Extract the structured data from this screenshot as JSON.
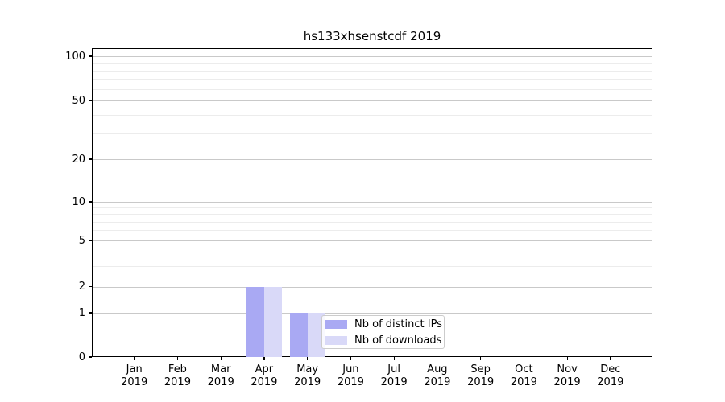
{
  "chart_data": {
    "type": "bar",
    "title": "hs133xhsenstcdf 2019",
    "categories": [
      "Jan 2019",
      "Feb 2019",
      "Mar 2019",
      "Apr 2019",
      "May 2019",
      "Jun 2019",
      "Jul 2019",
      "Aug 2019",
      "Sep 2019",
      "Oct 2019",
      "Nov 2019",
      "Dec 2019"
    ],
    "month_line1": [
      "Jan",
      "Feb",
      "Mar",
      "Apr",
      "May",
      "Jun",
      "Jul",
      "Aug",
      "Sep",
      "Oct",
      "Nov",
      "Dec"
    ],
    "year_line2": "2019",
    "series": [
      {
        "name": "Nb of distinct IPs",
        "color": "#a9a9f3",
        "values": [
          0,
          0,
          0,
          2,
          1,
          0,
          0,
          0,
          0,
          0,
          0,
          0
        ]
      },
      {
        "name": "Nb of downloads",
        "color": "#d9d9f8",
        "values": [
          0,
          0,
          0,
          2,
          1,
          0,
          0,
          0,
          0,
          0,
          0,
          0
        ]
      }
    ],
    "xlabel": "",
    "ylabel": "",
    "yscale": "symlog",
    "yticks": [
      0,
      1,
      2,
      5,
      10,
      20,
      50,
      100
    ],
    "yminor_ticks": [
      3,
      4,
      6,
      7,
      8,
      9,
      30,
      40,
      60,
      70,
      80,
      90
    ],
    "ylim": [
      0,
      115
    ],
    "grid": "horizontal major and minor",
    "legend": {
      "position": "lower center",
      "entries": [
        "Nb of distinct IPs",
        "Nb of downloads"
      ]
    },
    "colors": {
      "grid_major": "#c9c9c9",
      "grid_minor": "#ececec",
      "spine": "#000000",
      "text": "#000000",
      "background": "#ffffff"
    }
  }
}
